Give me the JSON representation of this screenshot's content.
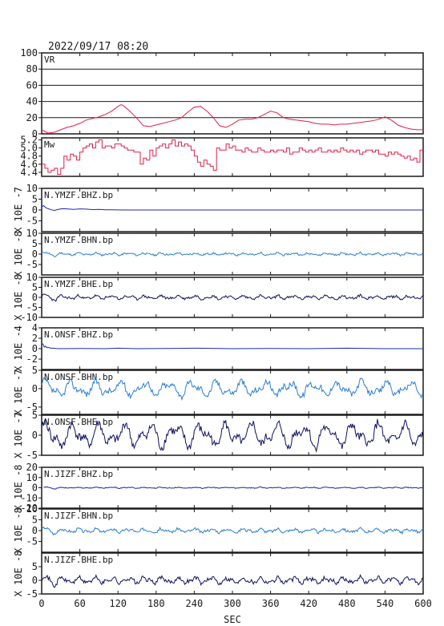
{
  "title": "2022/09/17  08:20",
  "colors": {
    "vr": "#e0204a",
    "mw": "#e0204a",
    "bhz": "#1a2aa8",
    "bhn": "#2a7fd0",
    "bhe": "#101060",
    "grid": "#1a1a1a"
  },
  "chart_data": [
    {
      "id": "vr",
      "type": "line",
      "label": "VR",
      "ylim": [
        0,
        100
      ],
      "yticks": [
        "0",
        "20",
        "40",
        "60",
        "80",
        "100"
      ],
      "ytick_values": [
        0,
        20,
        40,
        60,
        80,
        100
      ],
      "grid": true,
      "x": [
        0,
        5,
        10,
        20,
        30,
        40,
        50,
        60,
        70,
        80,
        90,
        100,
        110,
        120,
        125,
        130,
        140,
        150,
        160,
        170,
        180,
        190,
        200,
        210,
        220,
        230,
        240,
        250,
        260,
        270,
        280,
        290,
        300,
        310,
        320,
        330,
        340,
        350,
        360,
        370,
        380,
        390,
        400,
        410,
        420,
        430,
        440,
        450,
        460,
        470,
        480,
        490,
        500,
        510,
        520,
        530,
        540,
        550,
        560,
        570,
        580,
        590,
        600
      ],
      "y": [
        5,
        3,
        1,
        2,
        5,
        8,
        10,
        13,
        17,
        19,
        21,
        24,
        28,
        34,
        36,
        34,
        27,
        19,
        10,
        9,
        11,
        13,
        15,
        17,
        20,
        27,
        33,
        34,
        28,
        20,
        10,
        8,
        12,
        17,
        18,
        18,
        20,
        24,
        28,
        26,
        20,
        18,
        17,
        16,
        15,
        13,
        12,
        12,
        11,
        12,
        12,
        13,
        14,
        15,
        16,
        18,
        21,
        17,
        11,
        8,
        6,
        5,
        5
      ]
    },
    {
      "id": "mw",
      "type": "line",
      "label": "Mw",
      "ylim": [
        4.3,
        5.25
      ],
      "yticks": [
        "4.4",
        "4.6",
        "4.8",
        "5.0",
        "5.2"
      ],
      "ytick_values": [
        4.4,
        4.6,
        4.8,
        5.0,
        5.2
      ],
      "grid": false,
      "x": [
        0,
        5,
        10,
        15,
        20,
        25,
        30,
        35,
        40,
        45,
        50,
        55,
        60,
        65,
        70,
        75,
        80,
        85,
        90,
        95,
        100,
        105,
        110,
        115,
        120,
        125,
        130,
        135,
        140,
        145,
        150,
        155,
        160,
        165,
        170,
        175,
        180,
        185,
        190,
        195,
        200,
        205,
        210,
        215,
        220,
        225,
        230,
        235,
        240,
        245,
        250,
        255,
        260,
        265,
        270,
        275,
        280,
        285,
        290,
        295,
        300,
        305,
        310,
        315,
        320,
        325,
        330,
        335,
        340,
        345,
        350,
        355,
        360,
        365,
        370,
        375,
        380,
        385,
        390,
        395,
        400,
        405,
        410,
        415,
        420,
        425,
        430,
        435,
        440,
        445,
        450,
        455,
        460,
        465,
        470,
        475,
        480,
        485,
        490,
        495,
        500,
        505,
        510,
        515,
        520,
        525,
        530,
        535,
        540,
        545,
        550,
        555,
        560,
        565,
        570,
        575,
        580,
        585,
        590,
        595,
        600
      ],
      "y": [
        4.6,
        4.5,
        4.4,
        4.45,
        4.5,
        4.35,
        4.5,
        4.8,
        4.7,
        4.85,
        4.8,
        4.7,
        4.9,
        5.0,
        5.05,
        5.1,
        5.0,
        5.15,
        5.2,
        5.0,
        5.05,
        5.05,
        5.0,
        5.1,
        5.1,
        5.05,
        5.0,
        4.95,
        4.95,
        4.9,
        4.9,
        4.6,
        4.75,
        4.7,
        4.95,
        4.8,
        5.0,
        5.05,
        5.1,
        5.0,
        5.1,
        5.2,
        5.05,
        5.15,
        5.05,
        5.1,
        5.05,
        4.95,
        4.8,
        4.65,
        4.55,
        4.7,
        4.6,
        4.55,
        4.45,
        5.0,
        4.95,
        4.95,
        5.1,
        5.0,
        5.05,
        4.95,
        4.95,
        4.9,
        5.0,
        4.95,
        4.9,
        4.9,
        5.0,
        4.95,
        4.9,
        4.9,
        4.95,
        4.9,
        4.95,
        4.95,
        4.9,
        5.0,
        4.85,
        4.9,
        4.9,
        5.0,
        4.95,
        4.9,
        4.95,
        4.9,
        4.95,
        5.0,
        4.9,
        4.9,
        4.95,
        4.9,
        4.95,
        4.9,
        5.0,
        4.95,
        4.9,
        4.95,
        4.9,
        4.95,
        4.85,
        4.9,
        4.95,
        4.95,
        4.9,
        4.95,
        4.85,
        4.85,
        4.8,
        4.9,
        4.85,
        4.9,
        4.85,
        4.8,
        4.75,
        4.8,
        4.7,
        4.75,
        4.65,
        4.95,
        4.95
      ]
    },
    {
      "id": "ymzf-bhz",
      "type": "line",
      "label": "N.YMZF.BHZ.bp",
      "units": "X 10E -7",
      "ylim": [
        -10,
        10
      ],
      "yticks": [
        "-5",
        "0",
        "5",
        "10"
      ],
      "ytick_values": [
        -5,
        0,
        5,
        10
      ],
      "grid": false,
      "x": [
        0,
        3,
        6,
        10,
        15,
        20,
        25,
        30,
        35,
        40,
        50,
        60,
        70,
        80,
        90,
        100,
        110,
        120,
        140,
        200,
        300,
        400,
        500,
        600
      ],
      "y": [
        1.5,
        2.0,
        1.2,
        0.6,
        0.1,
        -0.2,
        0.2,
        0.5,
        0.6,
        0.5,
        0.3,
        0.5,
        0.4,
        0.2,
        0.3,
        0.1,
        0.1,
        0.05,
        0.0,
        0.0,
        0.0,
        0.0,
        0.0,
        0.0
      ]
    },
    {
      "id": "ymzf-bhn",
      "type": "line",
      "label": "N.YMZF.BHN.bp",
      "units": "X 10E -8",
      "ylim": [
        -10,
        10
      ],
      "yticks": [
        "-5",
        "0",
        "5",
        "10"
      ],
      "ytick_values": [
        -5,
        0,
        5,
        10
      ],
      "grid": false,
      "amplitude": 0.8,
      "noise_seed": 11,
      "base_wave": 0.4
    },
    {
      "id": "ymzf-bhe",
      "type": "line",
      "label": "N.YMZF.BHE.bp",
      "units": "X 10E -8",
      "ylim": [
        -10,
        10
      ],
      "yticks": [
        "-10",
        "-5",
        "0",
        "5",
        "10"
      ],
      "ytick_values": [
        -10,
        -5,
        0,
        5,
        10
      ],
      "grid": false,
      "amplitude": 1.2,
      "noise_seed": 23,
      "base_wave": 0.6
    },
    {
      "id": "onsf-bhz",
      "type": "line",
      "label": "N.ONSF.BHZ.bp",
      "units": "X 10E -4",
      "ylim": [
        -4,
        4
      ],
      "yticks": [
        "-2",
        "0",
        "2",
        "4"
      ],
      "ytick_values": [
        -2,
        0,
        2,
        4
      ],
      "grid": false,
      "x": [
        0,
        2,
        4,
        6,
        8,
        10,
        14,
        18,
        22,
        30,
        60,
        100,
        120,
        150,
        200,
        240,
        300,
        360,
        420,
        480,
        540,
        600
      ],
      "y": [
        0.8,
        0.9,
        0.3,
        0.5,
        0.2,
        0.3,
        0.1,
        0.1,
        0.05,
        0.0,
        0.05,
        0.0,
        0.1,
        0.0,
        0.05,
        0.1,
        0.0,
        0.05,
        0.0,
        0.1,
        0.0,
        0.0
      ]
    },
    {
      "id": "onsf-bhn",
      "type": "line",
      "label": "N.ONSF.BHN.bp",
      "units": "X 10E -7",
      "ylim": [
        -7,
        5
      ],
      "yticks": [
        "-5",
        "0",
        "5"
      ],
      "ytick_values": [
        -5,
        0,
        5
      ],
      "grid": false,
      "amplitude": 1.6,
      "noise_seed": 37,
      "base_wave": 1.4,
      "wave_period": 38
    },
    {
      "id": "onsf-bhe",
      "type": "line",
      "label": "N.ONSF.BHE.bp",
      "units": "X 10E -7",
      "ylim": [
        -5,
        5
      ],
      "yticks": [
        "-5",
        "0",
        "5"
      ],
      "ytick_values": [
        -5,
        0,
        5
      ],
      "grid": false,
      "amplitude": 2.2,
      "noise_seed": 41,
      "base_wave": 2.0,
      "wave_period": 40
    },
    {
      "id": "jizf-bhz",
      "type": "line",
      "label": "N.JIZF.BHZ.bp",
      "units": "X 10E -8",
      "ylim": [
        -20,
        20
      ],
      "yticks": [
        "-20",
        "-10",
        "0",
        "10",
        "20"
      ],
      "ytick_values": [
        -20,
        -10,
        0,
        10,
        20
      ],
      "grid": false,
      "amplitude": 0.8,
      "noise_seed": 53,
      "base_wave": 0.3,
      "start_offset": 3
    },
    {
      "id": "jizf-bhn",
      "type": "line",
      "label": "N.JIZF.BHN.bp",
      "units": "X 10E -8",
      "ylim": [
        -10,
        10
      ],
      "yticks": [
        "-5",
        "0",
        "5",
        "10"
      ],
      "ytick_values": [
        -5,
        0,
        5,
        10
      ],
      "grid": false,
      "amplitude": 1.2,
      "noise_seed": 67,
      "base_wave": 0.6
    },
    {
      "id": "jizf-bhe",
      "type": "line",
      "label": "N.JIZF.BHE.bp",
      "units": "X 10E -8",
      "ylim": [
        -5,
        10
      ],
      "yticks": [
        "-5",
        "0",
        "5"
      ],
      "ytick_values": [
        -5,
        0,
        5
      ],
      "grid": false,
      "amplitude": 1.4,
      "noise_seed": 71,
      "base_wave": 0.8
    }
  ],
  "x_axis": {
    "label": "SEC",
    "xlim": [
      0,
      600
    ],
    "ticks": [
      "0",
      "60",
      "120",
      "180",
      "240",
      "300",
      "360",
      "420",
      "480",
      "540",
      "600"
    ],
    "tick_values": [
      0,
      60,
      120,
      180,
      240,
      300,
      360,
      420,
      480,
      540,
      600
    ]
  }
}
